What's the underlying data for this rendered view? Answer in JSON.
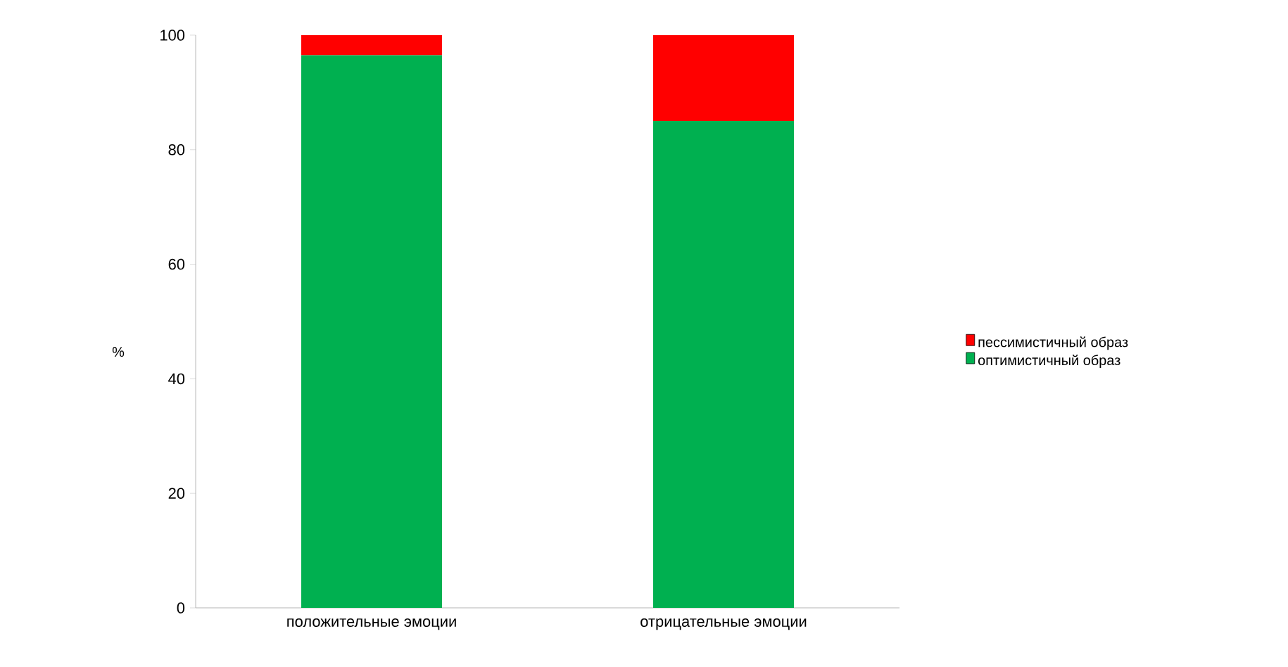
{
  "chart_data": {
    "type": "bar",
    "stacked": true,
    "ylabel": "%",
    "categories": [
      "положительные эмоции",
      "отрицательные эмоции"
    ],
    "series": [
      {
        "name": "оптимистичный образ",
        "color": "#00b050",
        "values": [
          96.5,
          85
        ]
      },
      {
        "name": "пессимистичный образ",
        "color": "#ff0000",
        "values": [
          3.5,
          15
        ]
      }
    ],
    "ylim": [
      0,
      100
    ],
    "yticks": [
      0,
      20,
      40,
      60,
      80,
      100
    ],
    "legend": "right",
    "grid": false
  }
}
